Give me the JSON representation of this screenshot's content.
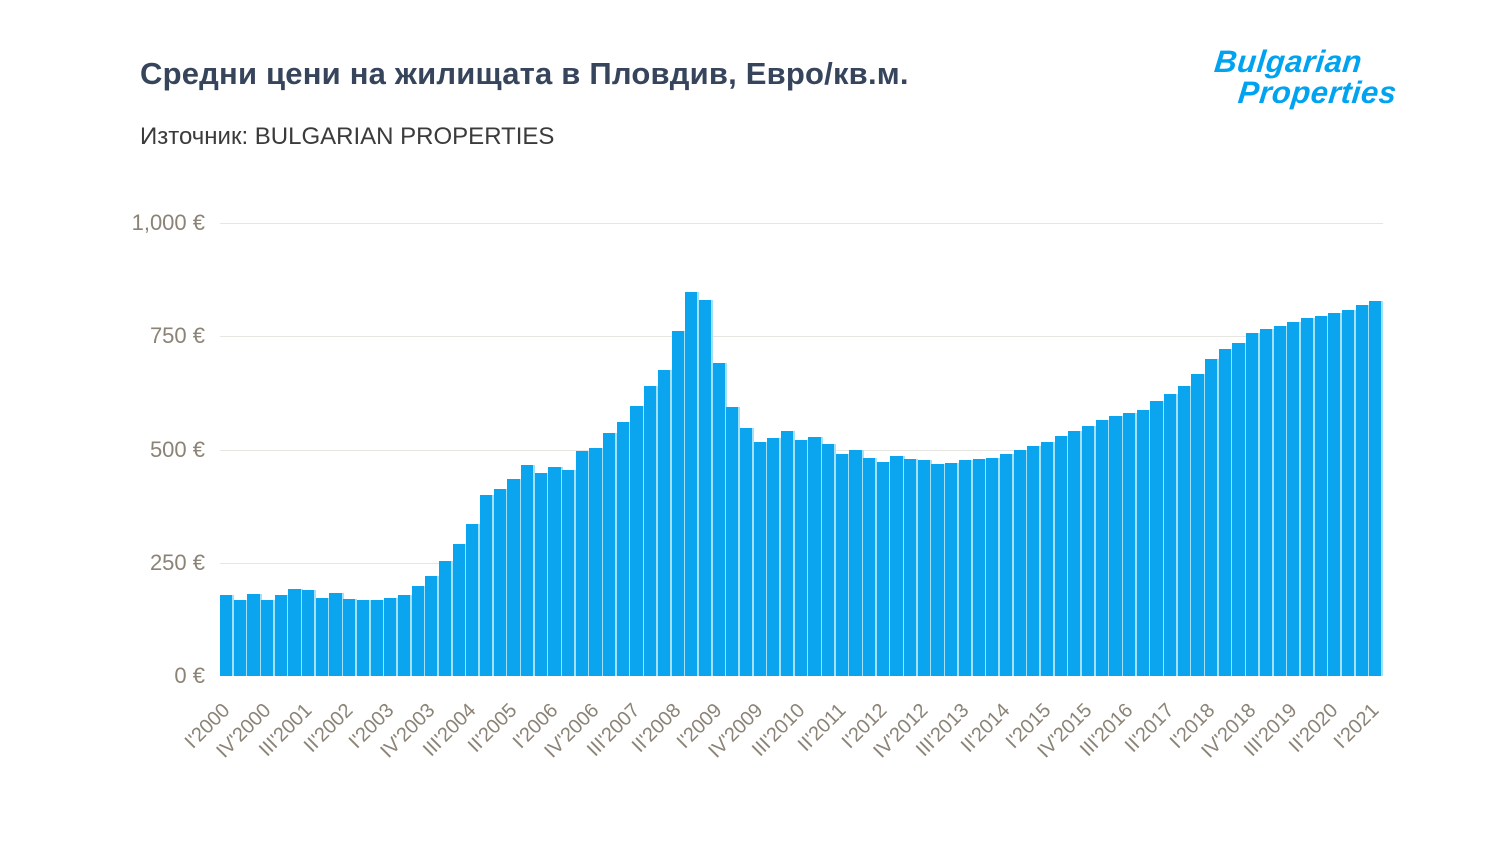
{
  "header": {
    "title": "Средни цени на жилищата в Пловдив, Евро/кв.м.",
    "source": "Източник: BULGARIAN PROPERTIES",
    "logo": {
      "line1": "Bulgarian",
      "line2": "Properties",
      "color": "#00a3ef"
    }
  },
  "colors": {
    "bar": "#0ba5ef",
    "bar_separator": "#a3e1fa",
    "gridline": "#e7e5e2",
    "axis_label": "#8b8376",
    "title": "#36445c",
    "subtitle": "#3b3b3b"
  },
  "chart_data": {
    "type": "bar",
    "title": "Средни цени на жилищата в Пловдив, Евро/кв.м.",
    "source_note": "Източник: BULGARIAN PROPERTIES",
    "ylabel": "",
    "xlabel": "",
    "ylim": [
      0,
      1000
    ],
    "grid": "horizontal",
    "legend": "none",
    "x_tick_every": 3,
    "y_ticks": [
      {
        "value": 0,
        "label": "0 €"
      },
      {
        "value": 250,
        "label": "250 €"
      },
      {
        "value": 500,
        "label": "500 €"
      },
      {
        "value": 750,
        "label": "750 €"
      },
      {
        "value": 1000,
        "label": "1,000 €"
      }
    ],
    "categories": [
      "I'2000",
      "II'2000",
      "III'2000",
      "IV'2000",
      "I'2001",
      "II'2001",
      "III'2001",
      "IV'2001",
      "I'2002",
      "II'2002",
      "III'2002",
      "IV'2002",
      "I'2003",
      "II'2003",
      "III'2003",
      "IV'2003",
      "I'2004",
      "II'2004",
      "III'2004",
      "IV'2004",
      "I'2005",
      "II'2005",
      "III'2005",
      "IV'2005",
      "I'2006",
      "II'2006",
      "III'2006",
      "IV'2006",
      "I'2007",
      "II'2007",
      "III'2007",
      "IV'2007",
      "I'2008",
      "II'2008",
      "III'2008",
      "IV'2008",
      "I'2009",
      "II'2009",
      "III'2009",
      "IV'2009",
      "I'2010",
      "II'2010",
      "III'2010",
      "IV'2010",
      "I'2011",
      "II'2011",
      "III'2011",
      "IV'2011",
      "I'2012",
      "II'2012",
      "III'2012",
      "IV'2012",
      "I'2013",
      "II'2013",
      "III'2013",
      "IV'2013",
      "I'2014",
      "II'2014",
      "III'2014",
      "IV'2014",
      "I'2015",
      "II'2015",
      "III'2015",
      "IV'2015",
      "I'2016",
      "II'2016",
      "III'2016",
      "IV'2016",
      "I'2017",
      "II'2017",
      "III'2017",
      "IV'2017",
      "I'2018",
      "II'2018",
      "III'2018",
      "IV'2018",
      "I'2019",
      "II'2019",
      "III'2019",
      "IV'2019",
      "I'2020",
      "II'2020",
      "III'2020",
      "IV'2020",
      "I'2021"
    ],
    "values": [
      178,
      168,
      180,
      168,
      178,
      192,
      190,
      172,
      183,
      171,
      167,
      168,
      172,
      178,
      199,
      221,
      254,
      291,
      336,
      400,
      413,
      434,
      466,
      448,
      461,
      454,
      496,
      503,
      537,
      561,
      595,
      641,
      675,
      762,
      848,
      830,
      692,
      594,
      547,
      516,
      526,
      541,
      522,
      528,
      513,
      489,
      500,
      482,
      473,
      486,
      478,
      476,
      469,
      471,
      476,
      478,
      481,
      489,
      498,
      508,
      516,
      529,
      541,
      553,
      566,
      574,
      580,
      588,
      607,
      623,
      641,
      666,
      699,
      721,
      735,
      757,
      765,
      772,
      782,
      790,
      795,
      801,
      809,
      819,
      828
    ]
  }
}
